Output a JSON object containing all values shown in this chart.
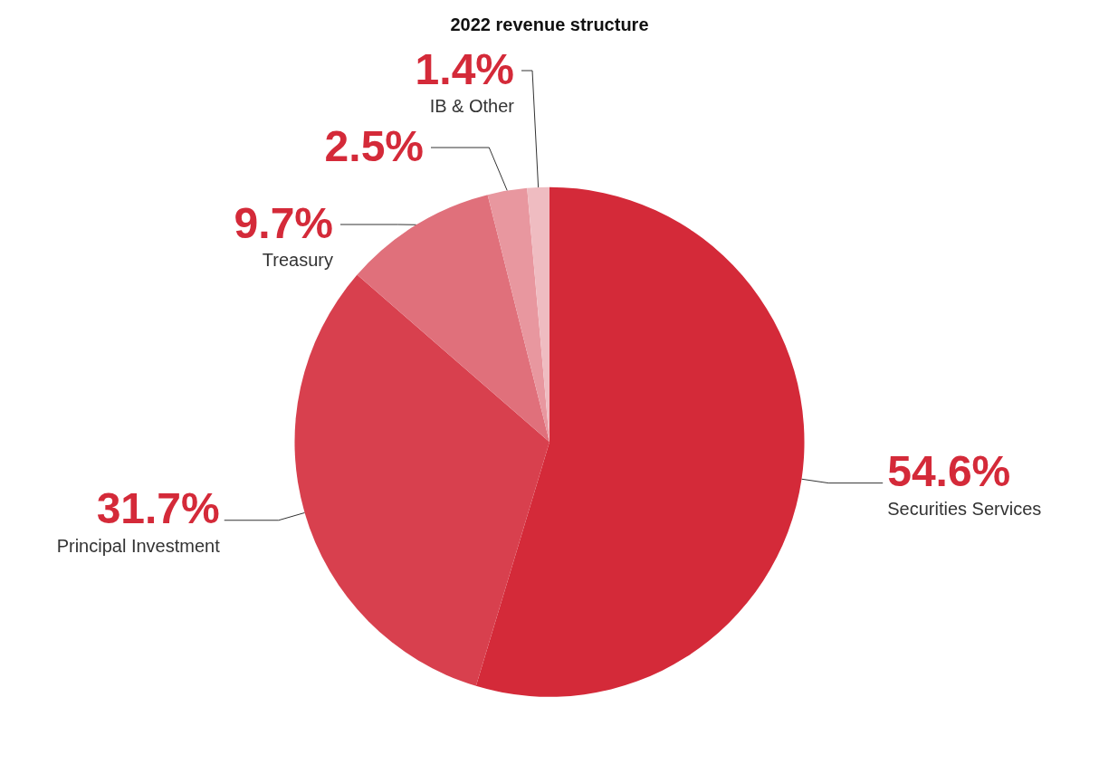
{
  "chart_data": {
    "type": "pie",
    "title": "2022 revenue structure",
    "categories": [
      "Securities Services",
      "Principal Investment",
      "Treasury",
      null,
      "IB & Other"
    ],
    "values": [
      54.6,
      31.7,
      9.7,
      2.5,
      1.4
    ],
    "value_labels": [
      "54.6%",
      "31.7%",
      "9.7%",
      "2.5%",
      "1.4%"
    ],
    "colors": [
      "#d42a39",
      "#d8404e",
      "#e0707b",
      "#e8979f",
      "#efbcc1"
    ],
    "legend": false
  }
}
